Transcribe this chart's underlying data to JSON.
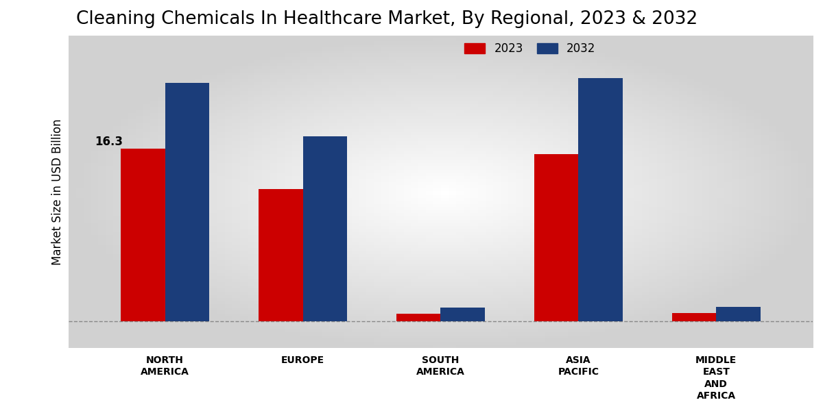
{
  "title": "Cleaning Chemicals In Healthcare Market, By Regional, 2023 & 2032",
  "ylabel": "Market Size in USD Billion",
  "categories": [
    "NORTH\nAMERICA",
    "EUROPE",
    "SOUTH\nAMERICA",
    "ASIA\nPACIFIC",
    "MIDDLE\nEAST\nAND\nAFRICA"
  ],
  "values_2023": [
    16.3,
    12.5,
    0.7,
    15.8,
    0.8
  ],
  "values_2032": [
    22.5,
    17.5,
    1.3,
    23.0,
    1.4
  ],
  "color_2023": "#cc0000",
  "color_2032": "#1b3d7a",
  "bar_width": 0.32,
  "annotation_label": "16.3",
  "legend_labels": [
    "2023",
    "2032"
  ],
  "title_fontsize": 19,
  "axis_label_fontsize": 12,
  "tick_label_fontsize": 10,
  "legend_fontsize": 12,
  "annotation_fontsize": 12,
  "dashed_line_y": 0,
  "ylim_min": -2.5,
  "ylim_max": 27
}
